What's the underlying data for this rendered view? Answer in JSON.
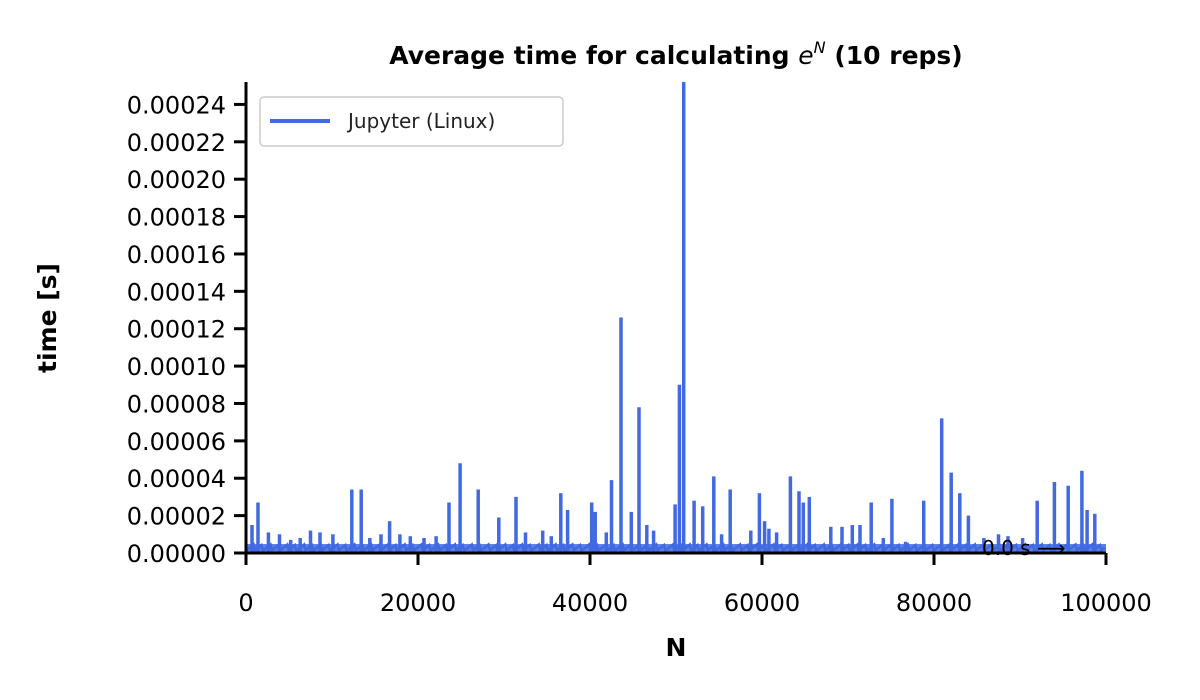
{
  "chart_data": {
    "type": "line",
    "title_prefix": "Average time for calculating ",
    "title_math_base": "e",
    "title_math_exp": "N",
    "title_suffix": " (10 reps)",
    "xlabel": "N",
    "ylabel": "time [s]",
    "xlim": [
      0,
      100000
    ],
    "ylim": [
      0,
      0.000252
    ],
    "x_ticks": [
      0,
      20000,
      40000,
      60000,
      80000,
      100000
    ],
    "x_tick_labels": [
      "0",
      "20000",
      "40000",
      "60000",
      "80000",
      "100000"
    ],
    "y_ticks": [
      0,
      2e-05,
      4e-05,
      6e-05,
      8e-05,
      0.0001,
      0.00012,
      0.00014,
      0.00016,
      0.00018,
      0.0002,
      0.00022,
      0.00024
    ],
    "y_tick_labels": [
      "0.00000",
      "0.00002",
      "0.00004",
      "0.00006",
      "0.00008",
      "0.00010",
      "0.00012",
      "0.00014",
      "0.00016",
      "0.00018",
      "0.00020",
      "0.00022",
      "0.00024"
    ],
    "grid": false,
    "legend_position": "top-left",
    "annotation": "0.0 s ⟶",
    "series": [
      {
        "name": "Jupyter (Linux)",
        "color": "#4169e1",
        "baseline": 4e-06,
        "spikes": [
          [
            700,
            1.5e-05
          ],
          [
            1400,
            2.7e-05
          ],
          [
            2600,
            1.1e-05
          ],
          [
            3900,
            1e-05
          ],
          [
            5200,
            7e-06
          ],
          [
            6300,
            8e-06
          ],
          [
            7500,
            1.2e-05
          ],
          [
            8600,
            1.1e-05
          ],
          [
            10100,
            1e-05
          ],
          [
            12300,
            3.4e-05
          ],
          [
            13400,
            3.4e-05
          ],
          [
            14400,
            8e-06
          ],
          [
            15700,
            1e-05
          ],
          [
            16700,
            1.7e-05
          ],
          [
            17900,
            1e-05
          ],
          [
            19100,
            9e-06
          ],
          [
            20700,
            8e-06
          ],
          [
            22100,
            9e-06
          ],
          [
            23600,
            2.7e-05
          ],
          [
            24900,
            4.8e-05
          ],
          [
            27000,
            3.4e-05
          ],
          [
            29400,
            1.9e-05
          ],
          [
            31400,
            3e-05
          ],
          [
            32500,
            1.1e-05
          ],
          [
            34500,
            1.2e-05
          ],
          [
            35500,
            9e-06
          ],
          [
            36600,
            3.2e-05
          ],
          [
            37400,
            2.3e-05
          ],
          [
            40200,
            2.7e-05
          ],
          [
            40600,
            2.2e-05
          ],
          [
            41900,
            1.1e-05
          ],
          [
            42500,
            3.9e-05
          ],
          [
            43600,
            0.000126
          ],
          [
            44800,
            2.2e-05
          ],
          [
            45700,
            7.8e-05
          ],
          [
            46600,
            1.5e-05
          ],
          [
            47400,
            1.2e-05
          ],
          [
            49900,
            2.6e-05
          ],
          [
            50400,
            9e-05
          ],
          [
            50900,
            0.000252
          ],
          [
            52100,
            2.8e-05
          ],
          [
            53100,
            2.5e-05
          ],
          [
            54400,
            4.1e-05
          ],
          [
            55300,
            1e-05
          ],
          [
            56300,
            3.4e-05
          ],
          [
            58700,
            1.2e-05
          ],
          [
            59700,
            3.2e-05
          ],
          [
            60300,
            1.7e-05
          ],
          [
            60800,
            1.3e-05
          ],
          [
            61700,
            1.1e-05
          ],
          [
            63300,
            4.1e-05
          ],
          [
            64300,
            3.3e-05
          ],
          [
            64800,
            2.7e-05
          ],
          [
            65500,
            3e-05
          ],
          [
            68000,
            1.4e-05
          ],
          [
            69300,
            1.4e-05
          ],
          [
            70500,
            1.5e-05
          ],
          [
            71400,
            1.5e-05
          ],
          [
            72700,
            2.7e-05
          ],
          [
            74100,
            8e-06
          ],
          [
            75100,
            2.9e-05
          ],
          [
            76700,
            6e-06
          ],
          [
            78800,
            2.8e-05
          ],
          [
            80900,
            7.2e-05
          ],
          [
            82000,
            4.3e-05
          ],
          [
            83000,
            3.2e-05
          ],
          [
            84000,
            2e-05
          ],
          [
            85800,
            8e-06
          ],
          [
            87500,
            1e-05
          ],
          [
            88600,
            9e-06
          ],
          [
            90300,
            8e-06
          ],
          [
            92000,
            2.8e-05
          ],
          [
            94000,
            3.8e-05
          ],
          [
            95600,
            3.6e-05
          ],
          [
            97200,
            4.4e-05
          ],
          [
            97800,
            2.3e-05
          ],
          [
            98700,
            2.1e-05
          ]
        ]
      }
    ]
  }
}
